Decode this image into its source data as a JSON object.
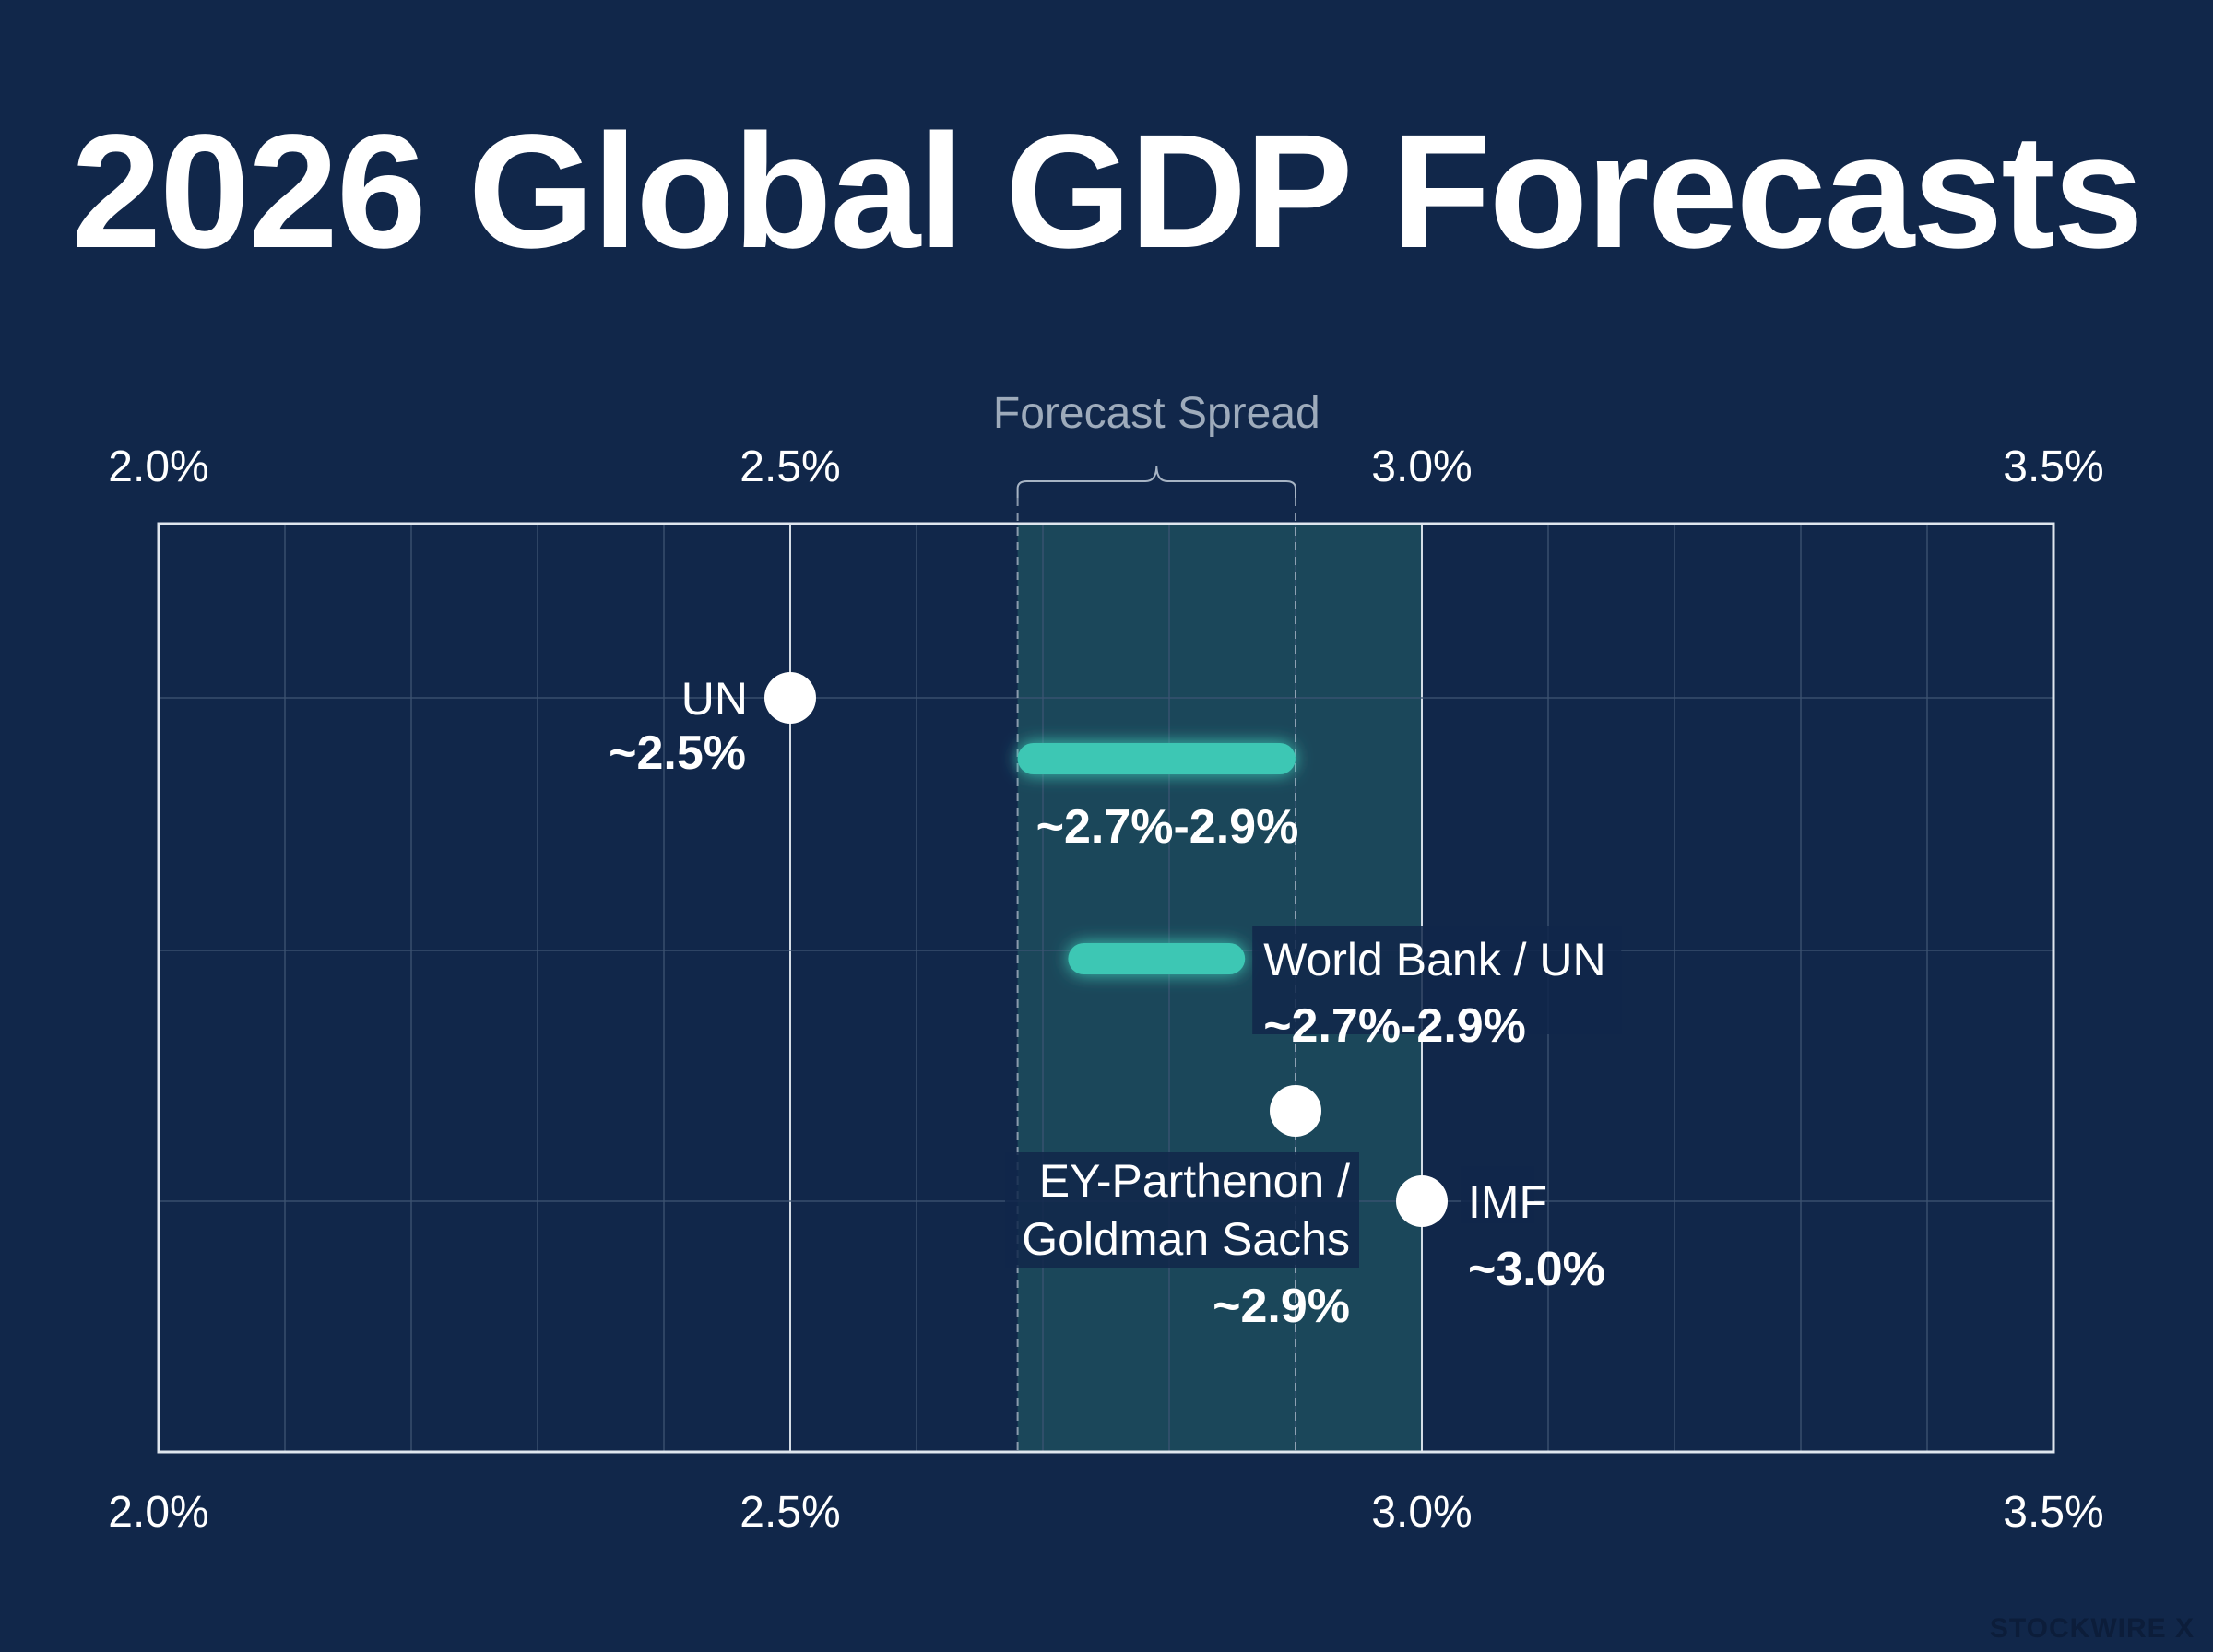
{
  "chart_data": {
    "type": "range-dot",
    "title": "2026 Global GDP Forecasts",
    "xlim": [
      2.0,
      3.5
    ],
    "x_ticks": [
      "2.0%",
      "2.5%",
      "3.0%",
      "3.5%"
    ],
    "x_tick_values": [
      2.0,
      2.5,
      3.0,
      3.5
    ],
    "grid": true,
    "spread": {
      "label": "Forecast Spread",
      "range": [
        2.68,
        2.9
      ]
    },
    "series": [
      {
        "name": "UN",
        "kind": "point",
        "value": 2.5,
        "value_label": "~2.5%"
      },
      {
        "name": "",
        "kind": "range",
        "range": [
          2.68,
          2.9
        ],
        "value_label": "~2.7%-2.9%"
      },
      {
        "name": "World Bank / UN",
        "kind": "range",
        "range": [
          2.72,
          2.86
        ],
        "value_label": "~2.7%-2.9%"
      },
      {
        "name": "EY-Parthenon / Goldman Sachs",
        "name_lines": [
          "EY-Parthenon /",
          "Goldman Sachs"
        ],
        "kind": "point",
        "value": 2.9,
        "value_label": "~2.9%"
      },
      {
        "name": "IMF",
        "kind": "point",
        "value": 3.0,
        "value_label": "~3.0%"
      }
    ],
    "colors": {
      "background": "#11274a",
      "range_bar": "#3cc7b4",
      "spread_band": "#1d4b5c",
      "grid": "#3e5573",
      "frame": "#dfe6ee",
      "dot": "#ffffff"
    }
  },
  "watermark": "STOCKWIRE X"
}
